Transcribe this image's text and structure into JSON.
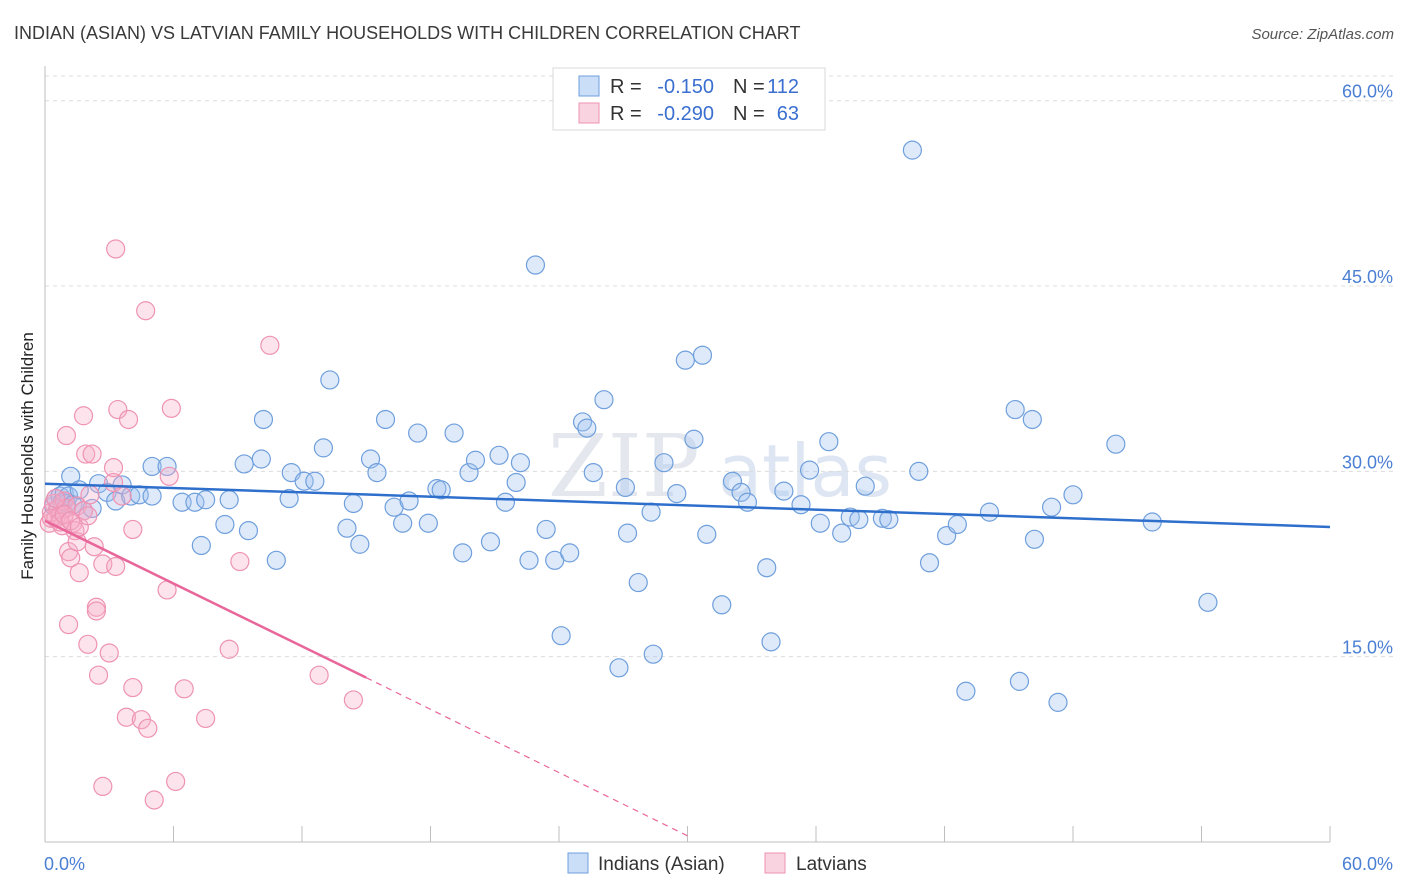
{
  "header": {
    "title": "INDIAN (ASIAN) VS LATVIAN FAMILY HOUSEHOLDS WITH CHILDREN CORRELATION CHART",
    "source": "Source: ZipAtlas.com"
  },
  "watermark": {
    "zip": "ZIP",
    "atlas": "atlas"
  },
  "colors": {
    "blue_fill": "rgba(160,195,240,0.35)",
    "blue_stroke": "#6f9fdc",
    "blue_line": "#2f6fcc",
    "pink_fill": "rgba(245,175,200,0.35)",
    "pink_stroke": "#ee93b3",
    "pink_line": "#e8669a",
    "grid": "#dcdcdc",
    "tick_text": "#4a7fd4"
  },
  "legend": {
    "rows": [
      {
        "r_label": "R =",
        "r_value": "-0.150",
        "n_label": "N =",
        "n_value": "112"
      },
      {
        "r_label": "R =",
        "r_value": "-0.290",
        "n_label": "N =",
        "n_value": "63"
      }
    ]
  },
  "bottom_legend": {
    "series1": "Indians (Asian)",
    "series2": "Latvians"
  },
  "chart_data": {
    "type": "scatter",
    "title": "INDIAN (ASIAN) VS LATVIAN FAMILY HOUSEHOLDS WITH CHILDREN CORRELATION CHART",
    "xlabel": "",
    "ylabel": "Family Households with Children",
    "xlim": [
      0,
      60
    ],
    "ylim": [
      0,
      62
    ],
    "x_tick_labels": [
      "0.0%",
      "60.0%"
    ],
    "y_ticks": [
      15,
      30,
      45,
      60
    ],
    "y_tick_labels": [
      "15.0%",
      "30.0%",
      "45.0%",
      "60.0%"
    ],
    "grid": true,
    "legend_position": "top-center",
    "series": [
      {
        "name": "Indians (Asian)",
        "r": -0.15,
        "n": 112,
        "trend": {
          "x": [
            0,
            60
          ],
          "y": [
            29.0,
            25.5
          ]
        },
        "points": [
          [
            0.4,
            27.2
          ],
          [
            0.5,
            27.8
          ],
          [
            0.6,
            26.9
          ],
          [
            0.7,
            28.0
          ],
          [
            0.8,
            27.5
          ],
          [
            0.9,
            28.2
          ],
          [
            1.0,
            27.4
          ],
          [
            1.1,
            28.0
          ],
          [
            1.2,
            29.6
          ],
          [
            1.3,
            27.3
          ],
          [
            1.6,
            28.5
          ],
          [
            1.8,
            26.8
          ],
          [
            2.2,
            27.0
          ],
          [
            2.5,
            29.0
          ],
          [
            2.9,
            28.3
          ],
          [
            3.3,
            27.6
          ],
          [
            3.6,
            28.9
          ],
          [
            4.0,
            28.0
          ],
          [
            4.4,
            28.1
          ],
          [
            5.0,
            28.0
          ],
          [
            5.0,
            30.4
          ],
          [
            5.7,
            30.4
          ],
          [
            6.4,
            27.5
          ],
          [
            7.0,
            27.5
          ],
          [
            7.5,
            27.7
          ],
          [
            7.3,
            24.0
          ],
          [
            8.4,
            25.7
          ],
          [
            8.6,
            27.7
          ],
          [
            9.3,
            30.6
          ],
          [
            9.5,
            25.2
          ],
          [
            10.1,
            31.0
          ],
          [
            10.2,
            34.2
          ],
          [
            10.8,
            22.8
          ],
          [
            11.4,
            27.8
          ],
          [
            11.5,
            29.9
          ],
          [
            12.1,
            29.2
          ],
          [
            12.6,
            29.2
          ],
          [
            13.0,
            31.9
          ],
          [
            13.3,
            37.4
          ],
          [
            14.1,
            25.4
          ],
          [
            14.4,
            27.4
          ],
          [
            14.7,
            24.1
          ],
          [
            15.2,
            31.0
          ],
          [
            15.5,
            29.9
          ],
          [
            15.9,
            34.2
          ],
          [
            16.3,
            27.1
          ],
          [
            16.7,
            25.8
          ],
          [
            17.0,
            27.6
          ],
          [
            17.4,
            33.1
          ],
          [
            17.9,
            25.8
          ],
          [
            18.3,
            28.6
          ],
          [
            18.5,
            28.5
          ],
          [
            19.1,
            33.1
          ],
          [
            19.5,
            23.4
          ],
          [
            19.8,
            29.9
          ],
          [
            20.1,
            30.9
          ],
          [
            20.8,
            24.3
          ],
          [
            21.2,
            31.3
          ],
          [
            21.5,
            27.5
          ],
          [
            22.0,
            29.1
          ],
          [
            22.2,
            30.7
          ],
          [
            22.6,
            22.8
          ],
          [
            22.9,
            46.7
          ],
          [
            23.4,
            25.3
          ],
          [
            23.8,
            22.8
          ],
          [
            24.1,
            16.7
          ],
          [
            24.5,
            23.4
          ],
          [
            25.1,
            34.0
          ],
          [
            25.3,
            33.5
          ],
          [
            25.6,
            29.9
          ],
          [
            26.1,
            35.8
          ],
          [
            26.8,
            14.1
          ],
          [
            27.1,
            28.7
          ],
          [
            27.2,
            25.0
          ],
          [
            27.7,
            21.0
          ],
          [
            28.3,
            26.7
          ],
          [
            28.4,
            15.2
          ],
          [
            28.9,
            30.7
          ],
          [
            29.5,
            28.2
          ],
          [
            29.9,
            39.0
          ],
          [
            30.3,
            32.6
          ],
          [
            30.7,
            39.4
          ],
          [
            30.9,
            24.9
          ],
          [
            31.6,
            19.2
          ],
          [
            32.1,
            29.2
          ],
          [
            32.5,
            28.3
          ],
          [
            32.8,
            27.5
          ],
          [
            33.7,
            22.2
          ],
          [
            33.9,
            16.2
          ],
          [
            34.5,
            28.4
          ],
          [
            35.3,
            27.3
          ],
          [
            35.7,
            30.1
          ],
          [
            36.2,
            25.8
          ],
          [
            36.6,
            32.4
          ],
          [
            37.2,
            25.0
          ],
          [
            37.6,
            26.3
          ],
          [
            38.0,
            26.1
          ],
          [
            38.3,
            28.8
          ],
          [
            39.1,
            26.2
          ],
          [
            39.4,
            26.1
          ],
          [
            40.5,
            56.0
          ],
          [
            40.8,
            30.0
          ],
          [
            41.3,
            22.6
          ],
          [
            42.1,
            24.8
          ],
          [
            42.6,
            25.7
          ],
          [
            43.0,
            12.2
          ],
          [
            44.1,
            26.7
          ],
          [
            45.3,
            35.0
          ],
          [
            45.5,
            13.0
          ],
          [
            46.1,
            34.2
          ],
          [
            46.2,
            24.5
          ],
          [
            47.0,
            27.1
          ],
          [
            47.3,
            11.3
          ],
          [
            48.0,
            28.1
          ],
          [
            50.0,
            32.2
          ],
          [
            51.7,
            25.9
          ],
          [
            54.3,
            19.4
          ]
        ]
      },
      {
        "name": "Latvians",
        "r": -0.29,
        "n": 63,
        "trend": {
          "x": [
            0,
            15
          ],
          "y": [
            26.0,
            13.3
          ]
        },
        "trend_dashed": {
          "x": [
            15,
            30
          ],
          "y": [
            13.3,
            0.5
          ]
        },
        "points": [
          [
            0.2,
            25.8
          ],
          [
            0.3,
            26.7
          ],
          [
            0.4,
            27.4
          ],
          [
            0.5,
            26.2
          ],
          [
            0.6,
            27.0
          ],
          [
            0.7,
            26.4
          ],
          [
            0.8,
            25.6
          ],
          [
            0.9,
            27.6
          ],
          [
            1.0,
            27.0
          ],
          [
            1.1,
            23.5
          ],
          [
            1.0,
            32.9
          ],
          [
            1.1,
            17.6
          ],
          [
            1.2,
            23.0
          ],
          [
            1.3,
            25.8
          ],
          [
            1.4,
            25.2
          ],
          [
            1.5,
            27.2
          ],
          [
            1.5,
            24.3
          ],
          [
            1.6,
            21.8
          ],
          [
            1.8,
            26.8
          ],
          [
            1.8,
            34.5
          ],
          [
            1.9,
            31.4
          ],
          [
            2.0,
            16.0
          ],
          [
            2.1,
            28.1
          ],
          [
            2.2,
            31.4
          ],
          [
            2.3,
            23.9
          ],
          [
            2.4,
            19.0
          ],
          [
            2.4,
            18.7
          ],
          [
            2.5,
            13.5
          ],
          [
            2.7,
            22.5
          ],
          [
            2.7,
            4.5
          ],
          [
            3.0,
            15.3
          ],
          [
            3.2,
            29.1
          ],
          [
            3.2,
            30.3
          ],
          [
            3.3,
            22.3
          ],
          [
            3.3,
            48.0
          ],
          [
            3.4,
            35.0
          ],
          [
            3.6,
            28.0
          ],
          [
            3.8,
            10.1
          ],
          [
            3.9,
            34.2
          ],
          [
            4.1,
            12.5
          ],
          [
            4.1,
            25.3
          ],
          [
            4.5,
            9.9
          ],
          [
            4.8,
            9.2
          ],
          [
            4.7,
            43.0
          ],
          [
            5.1,
            3.4
          ],
          [
            5.7,
            20.4
          ],
          [
            5.8,
            29.6
          ],
          [
            5.9,
            35.1
          ],
          [
            6.1,
            4.9
          ],
          [
            6.5,
            12.4
          ],
          [
            7.5,
            10.0
          ],
          [
            8.6,
            15.6
          ],
          [
            9.1,
            22.7
          ],
          [
            10.5,
            40.2
          ],
          [
            12.8,
            13.5
          ],
          [
            14.4,
            11.5
          ],
          [
            0.3,
            26.2
          ],
          [
            0.5,
            27.8
          ],
          [
            0.7,
            25.9
          ],
          [
            0.9,
            26.5
          ],
          [
            1.2,
            26.0
          ],
          [
            1.6,
            25.5
          ],
          [
            2.0,
            26.4
          ]
        ]
      }
    ]
  }
}
